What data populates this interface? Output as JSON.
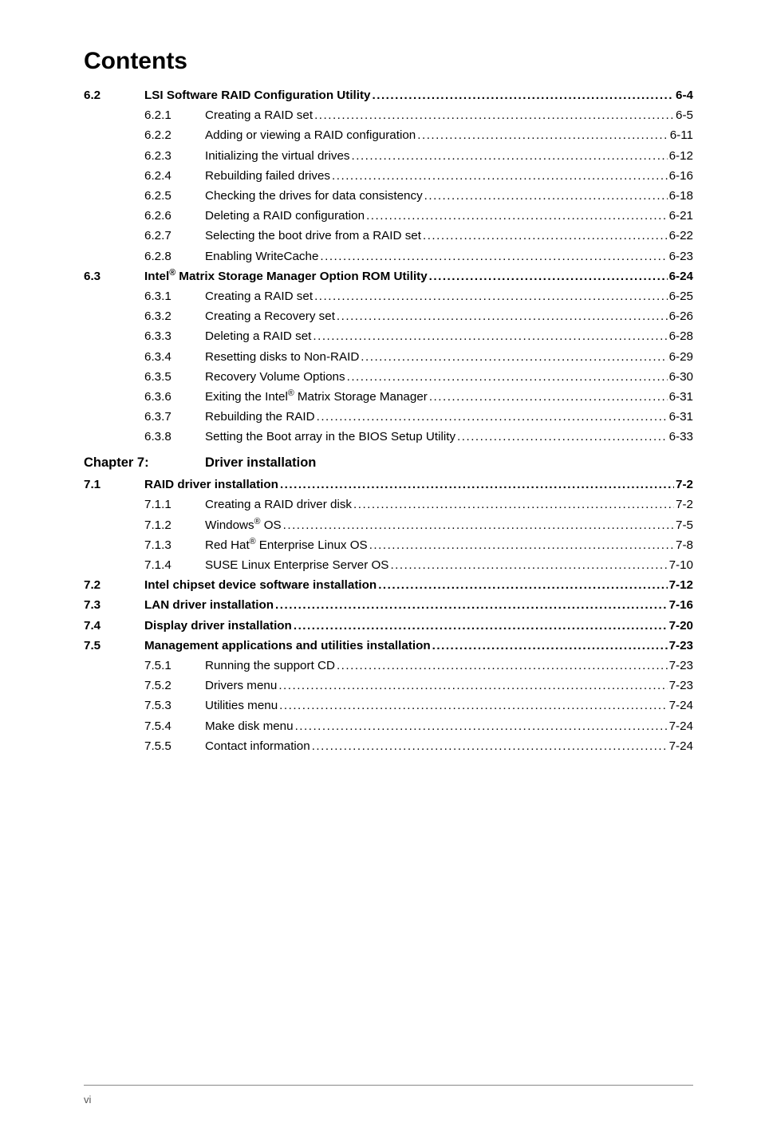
{
  "title": "Contents",
  "entries": [
    {
      "type": "l1",
      "num": "6.2",
      "label": "LSI Software RAID Configuration Utility",
      "page": "6-4",
      "bold": true
    },
    {
      "type": "l2",
      "num": "6.2.1",
      "label": "Creating a RAID set",
      "page": "6-5"
    },
    {
      "type": "l2",
      "num": "6.2.2",
      "label": "Adding or viewing a RAID configuration",
      "page": "6-11"
    },
    {
      "type": "l2",
      "num": "6.2.3",
      "label": "Initializing the virtual drives",
      "page": "6-12"
    },
    {
      "type": "l2",
      "num": "6.2.4",
      "label": "Rebuilding failed drives",
      "page": "6-16"
    },
    {
      "type": "l2",
      "num": "6.2.5",
      "label": "Checking the drives for data consistency",
      "page": "6-18"
    },
    {
      "type": "l2",
      "num": "6.2.6",
      "label": "Deleting a RAID configuration",
      "page": "6-21"
    },
    {
      "type": "l2",
      "num": "6.2.7",
      "label": "Selecting the boot drive from a RAID set",
      "page": "6-22"
    },
    {
      "type": "l2",
      "num": "6.2.8",
      "label": "Enabling WriteCache",
      "page": "6-23"
    },
    {
      "type": "l1",
      "num": "6.3",
      "label_html": "Intel<span class=\"sup\">®</span> Matrix Storage Manager Option ROM Utility",
      "page": "6-24",
      "bold": true
    },
    {
      "type": "l2",
      "num": "6.3.1",
      "label": "Creating a RAID set",
      "page": "6-25"
    },
    {
      "type": "l2",
      "num": "6.3.2",
      "label": "Creating a Recovery set",
      "page": "6-26"
    },
    {
      "type": "l2",
      "num": "6.3.3",
      "label": "Deleting a RAID set",
      "page": "6-28"
    },
    {
      "type": "l2",
      "num": "6.3.4",
      "label": "Resetting disks to Non-RAID",
      "page": "6-29"
    },
    {
      "type": "l2",
      "num": "6.3.5",
      "label": "Recovery Volume Options",
      "page": "6-30"
    },
    {
      "type": "l2",
      "num": "6.3.6",
      "label_html": "Exiting the Intel<span class=\"sup\">®</span> Matrix Storage Manager",
      "page": "6-31"
    },
    {
      "type": "l2",
      "num": "6.3.7",
      "label": "Rebuilding the RAID",
      "page": "6-31"
    },
    {
      "type": "l2",
      "num": "6.3.8",
      "label": "Setting the Boot array in the BIOS Setup Utility",
      "page": "6-33"
    },
    {
      "type": "chapter",
      "num": "Chapter 7:",
      "label": "Driver installation"
    },
    {
      "type": "l1",
      "num": "7.1",
      "label": "RAID driver installation",
      "page": "7-2",
      "bold": true
    },
    {
      "type": "l2",
      "num": "7.1.1",
      "label": "Creating a RAID driver disk",
      "page": "7-2"
    },
    {
      "type": "l2",
      "num": "7.1.2",
      "label_html": "Windows<span class=\"sup\">®</span> OS",
      "page": "7-5"
    },
    {
      "type": "l2",
      "num": "7.1.3",
      "label_html": "Red Hat<span class=\"sup\">®</span> Enterprise Linux OS",
      "page": "7-8"
    },
    {
      "type": "l2",
      "num": "7.1.4",
      "label": "SUSE Linux Enterprise Server OS",
      "page": "7-10"
    },
    {
      "type": "l1",
      "num": "7.2",
      "label": "Intel chipset device software installation",
      "page": "7-12",
      "bold": true
    },
    {
      "type": "l1",
      "num": "7.3",
      "label": "LAN driver installation",
      "page": "7-16",
      "bold": true
    },
    {
      "type": "l1",
      "num": "7.4",
      "label": "Display driver installation",
      "page": "7-20",
      "bold": true
    },
    {
      "type": "l1",
      "num": "7.5",
      "label": "Management applications and utilities installation",
      "page": "7-23",
      "bold": true
    },
    {
      "type": "l2",
      "num": "7.5.1",
      "label": "Running the support CD",
      "page": "7-23"
    },
    {
      "type": "l2",
      "num": "7.5.2",
      "label": "Drivers menu",
      "page": "7-23"
    },
    {
      "type": "l2",
      "num": "7.5.3",
      "label": "Utilities menu",
      "page": "7-24"
    },
    {
      "type": "l2",
      "num": "7.5.4",
      "label": "Make disk menu",
      "page": "7-24"
    },
    {
      "type": "l2",
      "num": "7.5.5",
      "label": "Contact information",
      "page": "7-24"
    }
  ],
  "footer": "vi"
}
